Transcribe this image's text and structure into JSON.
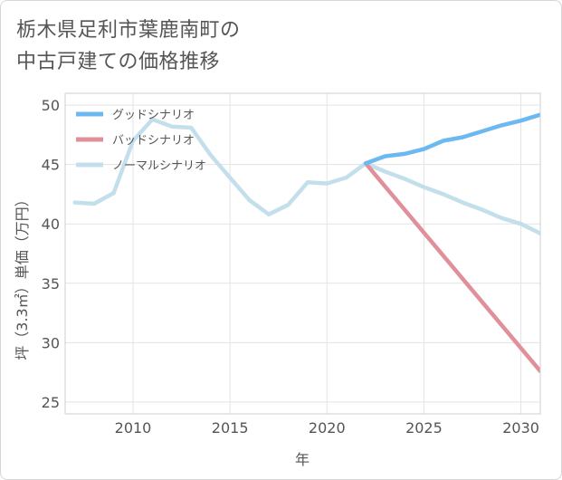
{
  "title": {
    "line1": "栃木県足利市葉鹿南町の",
    "line2": "中古戸建ての価格推移"
  },
  "chart_data": {
    "type": "line",
    "xlabel": "年",
    "ylabel": "坪（3.3㎡）単価（万円）",
    "xlim": [
      2006.5,
      2031
    ],
    "ylim": [
      24,
      51
    ],
    "xticks": [
      2010,
      2015,
      2020,
      2025,
      2030
    ],
    "yticks": [
      25,
      30,
      35,
      40,
      45,
      50
    ],
    "grid": true,
    "legend_position": "top-left",
    "series": [
      {
        "name": "グッドシナリオ",
        "color": "#6cb8f0",
        "x": [
          2022,
          2023,
          2024,
          2025,
          2026,
          2027,
          2028,
          2029,
          2030,
          2031
        ],
        "y": [
          45.1,
          45.7,
          45.9,
          46.3,
          47.0,
          47.3,
          47.8,
          48.3,
          48.7,
          49.2
        ]
      },
      {
        "name": "バッドシナリオ",
        "color": "#e0909a",
        "x": [
          2022,
          2031
        ],
        "y": [
          45.1,
          27.6
        ]
      },
      {
        "name": "ノーマルシナリオ",
        "color": "#c4dfec",
        "x": [
          2007,
          2008,
          2009,
          2010,
          2011,
          2012,
          2013,
          2014,
          2015,
          2016,
          2017,
          2018,
          2019,
          2020,
          2021,
          2022,
          2023,
          2024,
          2025,
          2026,
          2027,
          2028,
          2029,
          2030,
          2031
        ],
        "y": [
          41.8,
          41.7,
          42.6,
          47.0,
          48.8,
          48.2,
          48.1,
          45.8,
          43.9,
          42.0,
          40.8,
          41.6,
          43.5,
          43.4,
          43.9,
          45.1,
          44.4,
          43.8,
          43.1,
          42.5,
          41.8,
          41.2,
          40.5,
          40.0,
          39.2
        ]
      }
    ]
  }
}
